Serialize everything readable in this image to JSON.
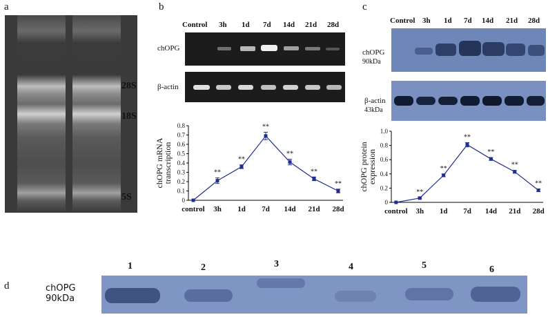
{
  "panels": {
    "a": {
      "label": "a",
      "rrna_labels": [
        "28S",
        "18S",
        "5S"
      ]
    },
    "b": {
      "label": "b",
      "lane_labels": [
        "Control",
        "3h",
        "1d",
        "7d",
        "14d",
        "21d",
        "28d"
      ],
      "rows": [
        "chOPG",
        "β-actin"
      ],
      "chart_data": {
        "type": "line",
        "categories": [
          "control",
          "3h",
          "1d",
          "7d",
          "14d",
          "21d",
          "28d"
        ],
        "series": [
          {
            "values": [
              0.0,
              0.21,
              0.36,
              0.69,
              0.41,
              0.23,
              0.1
            ]
          }
        ],
        "error": [
          0.0,
          0.03,
          0.02,
          0.04,
          0.03,
          0.02,
          0.02
        ],
        "significance": [
          "",
          "**",
          "**",
          "**",
          "**",
          "**",
          "**"
        ],
        "ylabel_line1": "chOPG mRNA",
        "ylabel_line2": "transcription",
        "yticks": [
          "0",
          "0.1",
          "0.2",
          "0.3",
          "0.4",
          "0.5",
          "0.6",
          "0.7",
          "0.8"
        ],
        "ylim": [
          0,
          0.8
        ],
        "color": "#1f2f8f"
      }
    },
    "c": {
      "label": "c",
      "lane_labels": [
        "Control",
        "3h",
        "1d",
        "7d",
        "14d",
        "21d",
        "28d"
      ],
      "row1_line1": "chOPG",
      "row1_line2": "90kDa",
      "row2_line1": "β-actin",
      "row2_line2": "43kDa",
      "chart_data": {
        "type": "line",
        "categories": [
          "control",
          "3h",
          "1d",
          "7d",
          "14d",
          "21d",
          "28d"
        ],
        "series": [
          {
            "values": [
              0.0,
              0.06,
              0.38,
              0.81,
              0.61,
              0.43,
              0.17
            ]
          }
        ],
        "error": [
          0.0,
          0.01,
          0.02,
          0.03,
          0.02,
          0.02,
          0.02
        ],
        "significance": [
          "",
          "**",
          "**",
          "**",
          "**",
          "**",
          "**"
        ],
        "ylabel_line1": "chOPG protein",
        "ylabel_line2": "expression",
        "yticks": [
          "0",
          "0.2",
          "0.4",
          "0.6",
          "0.8",
          "1.0"
        ],
        "ylim": [
          0,
          1.0
        ],
        "color": "#1f2f8f"
      }
    },
    "d": {
      "label": "d",
      "lane_numbers": [
        "1",
        "2",
        "3",
        "4",
        "5",
        "6"
      ],
      "row_line1": "chOPG",
      "row_line2": "90kDa"
    }
  }
}
